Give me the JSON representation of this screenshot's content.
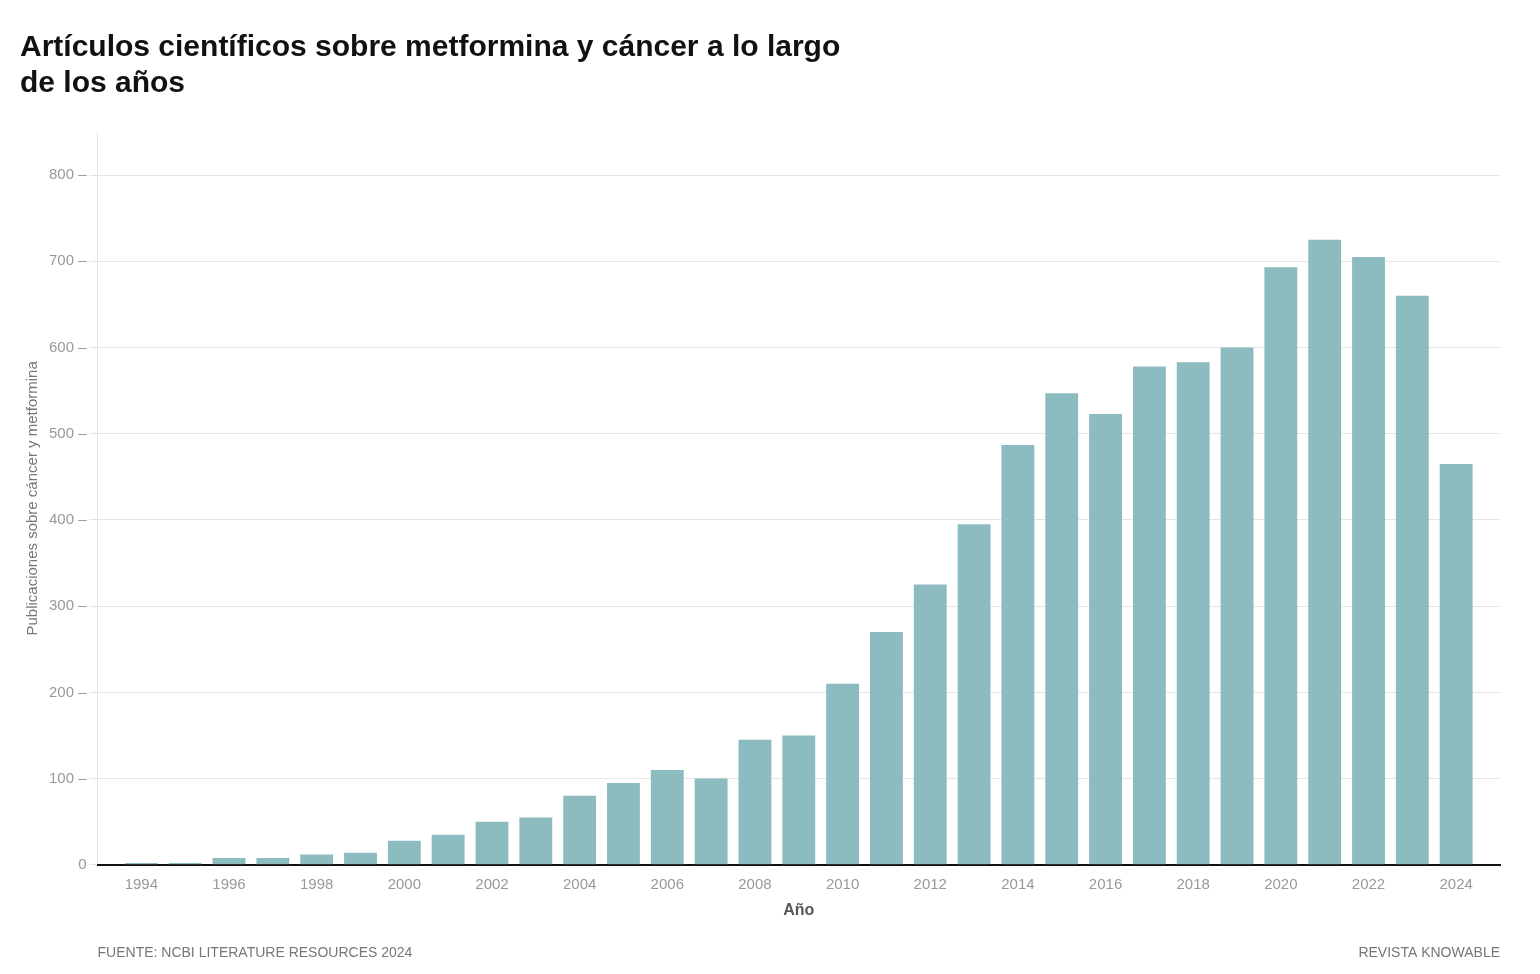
{
  "chart_data": {
    "type": "bar",
    "title": [
      "Artículos científicos sobre metformina y cáncer a lo largo",
      "de los años"
    ],
    "xlabel": "Año",
    "ylabel": "Publicaciones sobre cáncer y metformina",
    "x": [
      1994,
      1995,
      1996,
      1997,
      1998,
      1999,
      2000,
      2001,
      2002,
      2003,
      2004,
      2005,
      2006,
      2007,
      2008,
      2009,
      2010,
      2011,
      2012,
      2013,
      2014,
      2015,
      2016,
      2017,
      2018,
      2019,
      2020,
      2021,
      2022,
      2023,
      2024
    ],
    "values": [
      2,
      2,
      8,
      8,
      12,
      14,
      28,
      35,
      50,
      55,
      80,
      95,
      110,
      100,
      145,
      150,
      210,
      270,
      325,
      395,
      487,
      547,
      523,
      578,
      583,
      600,
      693,
      725,
      705,
      660,
      465
    ],
    "color": "#8cbcbf",
    "xlim": [
      1993.0,
      2025.0
    ],
    "xticks": [
      1994,
      1996,
      1998,
      2000,
      2002,
      2004,
      2006,
      2008,
      2010,
      2012,
      2014,
      2016,
      2018,
      2020,
      2022,
      2024
    ],
    "ylim": [
      0,
      850
    ],
    "yticks": [
      0,
      {
        "value": 100,
        "label": "100 –"
      },
      {
        "value": 200,
        "label": "200 –"
      },
      {
        "value": 300,
        "label": "300 –"
      },
      {
        "value": 400,
        "label": "400 –"
      },
      {
        "value": 500,
        "label": "500 –"
      },
      {
        "value": 600,
        "label": "600 –"
      },
      {
        "value": 700,
        "label": "700 –"
      },
      {
        "value": 800,
        "label": "800 –"
      }
    ],
    "grid": true,
    "annotations": [
      "FUENTE: NCBI LITERATURE RESOURCES 2024",
      "REVISTA KNOWABLE"
    ]
  }
}
